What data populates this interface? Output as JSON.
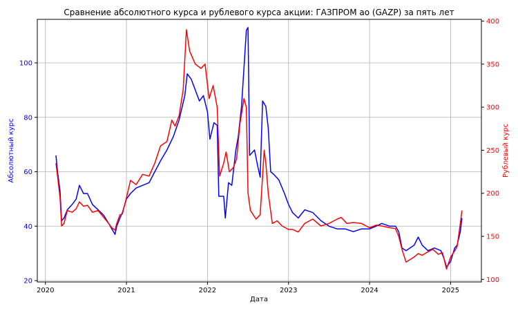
{
  "chart_data": {
    "type": "line",
    "title": "Сравнение абсолютного курса и рублевого курса акции: ГАЗПРОМ ао (GAZP) за пять лет",
    "xlabel": "Дата",
    "ylabel_left": "Абсолютный курс",
    "ylabel_right": "Рублевый курс",
    "xlim": [
      2019.9,
      2025.38
    ],
    "ylim_left": [
      19.5,
      116
    ],
    "ylim_right": [
      97,
      402
    ],
    "x_ticks": [
      {
        "value": 2020,
        "label": "2020"
      },
      {
        "value": 2021,
        "label": "2021"
      },
      {
        "value": 2022,
        "label": "2022"
      },
      {
        "value": 2023,
        "label": "2023"
      },
      {
        "value": 2024,
        "label": "2024"
      },
      {
        "value": 2025,
        "label": "2025"
      }
    ],
    "y_left_ticks": [
      {
        "value": 20,
        "label": "20"
      },
      {
        "value": 40,
        "label": "40"
      },
      {
        "value": 60,
        "label": "60"
      },
      {
        "value": 80,
        "label": "80"
      },
      {
        "value": 100,
        "label": "100"
      }
    ],
    "y_right_ticks": [
      {
        "value": 100,
        "label": "100"
      },
      {
        "value": 150,
        "label": "150"
      },
      {
        "value": 200,
        "label": "200"
      },
      {
        "value": 250,
        "label": "250"
      },
      {
        "value": 300,
        "label": "300"
      },
      {
        "value": 350,
        "label": "350"
      },
      {
        "value": 400,
        "label": "400"
      }
    ],
    "grid": true,
    "colors": {
      "absolute": "#0000ff",
      "ruble": "#ff0000",
      "left_axis": "#0000ff",
      "right_axis": "#ff0000"
    },
    "series": [
      {
        "axis": "left",
        "color": "#0000ff",
        "points": [
          [
            2020.13,
            66
          ],
          [
            2020.15,
            60
          ],
          [
            2020.18,
            53
          ],
          [
            2020.2,
            42
          ],
          [
            2020.23,
            43
          ],
          [
            2020.27,
            46
          ],
          [
            2020.33,
            48
          ],
          [
            2020.38,
            50
          ],
          [
            2020.42,
            55
          ],
          [
            2020.47,
            52
          ],
          [
            2020.52,
            52
          ],
          [
            2020.58,
            48
          ],
          [
            2020.65,
            46
          ],
          [
            2020.72,
            44
          ],
          [
            2020.78,
            41
          ],
          [
            2020.82,
            39
          ],
          [
            2020.86,
            37
          ],
          [
            2020.88,
            40
          ],
          [
            2020.92,
            43
          ],
          [
            2020.95,
            45
          ],
          [
            2021.0,
            50
          ],
          [
            2021.05,
            52
          ],
          [
            2021.12,
            54
          ],
          [
            2021.2,
            55
          ],
          [
            2021.28,
            56
          ],
          [
            2021.35,
            60
          ],
          [
            2021.42,
            64
          ],
          [
            2021.5,
            68
          ],
          [
            2021.58,
            73
          ],
          [
            2021.65,
            79
          ],
          [
            2021.72,
            88
          ],
          [
            2021.75,
            96
          ],
          [
            2021.8,
            94
          ],
          [
            2021.85,
            90
          ],
          [
            2021.9,
            86
          ],
          [
            2021.95,
            88
          ],
          [
            2022.0,
            82
          ],
          [
            2022.03,
            72
          ],
          [
            2022.08,
            78
          ],
          [
            2022.12,
            77
          ],
          [
            2022.14,
            51
          ],
          [
            2022.2,
            51
          ],
          [
            2022.22,
            43
          ],
          [
            2022.26,
            56
          ],
          [
            2022.3,
            55
          ],
          [
            2022.35,
            68
          ],
          [
            2022.38,
            73
          ],
          [
            2022.42,
            84
          ],
          [
            2022.45,
            98
          ],
          [
            2022.48,
            112
          ],
          [
            2022.5,
            113
          ],
          [
            2022.52,
            66
          ],
          [
            2022.58,
            68
          ],
          [
            2022.62,
            62
          ],
          [
            2022.65,
            58
          ],
          [
            2022.68,
            86
          ],
          [
            2022.72,
            84
          ],
          [
            2022.75,
            76
          ],
          [
            2022.78,
            60
          ],
          [
            2022.82,
            59
          ],
          [
            2022.88,
            57
          ],
          [
            2022.95,
            52
          ],
          [
            2023.0,
            48
          ],
          [
            2023.05,
            45
          ],
          [
            2023.12,
            43
          ],
          [
            2023.2,
            46
          ],
          [
            2023.3,
            45
          ],
          [
            2023.4,
            42
          ],
          [
            2023.5,
            40
          ],
          [
            2023.6,
            39
          ],
          [
            2023.7,
            39
          ],
          [
            2023.8,
            38
          ],
          [
            2023.9,
            39
          ],
          [
            2024.0,
            39
          ],
          [
            2024.08,
            40
          ],
          [
            2024.15,
            41
          ],
          [
            2024.25,
            40
          ],
          [
            2024.32,
            40
          ],
          [
            2024.36,
            38
          ],
          [
            2024.4,
            32
          ],
          [
            2024.45,
            31
          ],
          [
            2024.55,
            33
          ],
          [
            2024.6,
            36
          ],
          [
            2024.65,
            33
          ],
          [
            2024.72,
            31
          ],
          [
            2024.8,
            32
          ],
          [
            2024.88,
            31
          ],
          [
            2024.92,
            28
          ],
          [
            2024.95,
            25
          ],
          [
            2025.0,
            27
          ],
          [
            2025.05,
            32
          ],
          [
            2025.08,
            33
          ],
          [
            2025.12,
            38
          ],
          [
            2025.14,
            43
          ]
        ]
      },
      {
        "axis": "right",
        "color": "#ff0000",
        "points": [
          [
            2020.13,
            235
          ],
          [
            2020.15,
            220
          ],
          [
            2020.18,
            195
          ],
          [
            2020.2,
            162
          ],
          [
            2020.23,
            165
          ],
          [
            2020.27,
            180
          ],
          [
            2020.33,
            178
          ],
          [
            2020.38,
            182
          ],
          [
            2020.42,
            190
          ],
          [
            2020.47,
            185
          ],
          [
            2020.52,
            186
          ],
          [
            2020.58,
            178
          ],
          [
            2020.65,
            180
          ],
          [
            2020.72,
            172
          ],
          [
            2020.78,
            165
          ],
          [
            2020.82,
            160
          ],
          [
            2020.86,
            157
          ],
          [
            2020.88,
            165
          ],
          [
            2020.92,
            175
          ],
          [
            2020.95,
            176
          ],
          [
            2021.0,
            195
          ],
          [
            2021.05,
            215
          ],
          [
            2021.12,
            210
          ],
          [
            2021.2,
            222
          ],
          [
            2021.28,
            220
          ],
          [
            2021.35,
            235
          ],
          [
            2021.42,
            255
          ],
          [
            2021.5,
            260
          ],
          [
            2021.56,
            285
          ],
          [
            2021.6,
            278
          ],
          [
            2021.65,
            290
          ],
          [
            2021.7,
            320
          ],
          [
            2021.74,
            390
          ],
          [
            2021.78,
            365
          ],
          [
            2021.85,
            350
          ],
          [
            2021.92,
            345
          ],
          [
            2021.97,
            350
          ],
          [
            2022.02,
            310
          ],
          [
            2022.07,
            325
          ],
          [
            2022.12,
            300
          ],
          [
            2022.15,
            220
          ],
          [
            2022.2,
            235
          ],
          [
            2022.23,
            248
          ],
          [
            2022.27,
            225
          ],
          [
            2022.32,
            230
          ],
          [
            2022.36,
            240
          ],
          [
            2022.4,
            280
          ],
          [
            2022.45,
            310
          ],
          [
            2022.48,
            300
          ],
          [
            2022.5,
            200
          ],
          [
            2022.53,
            180
          ],
          [
            2022.6,
            170
          ],
          [
            2022.65,
            175
          ],
          [
            2022.7,
            250
          ],
          [
            2022.72,
            235
          ],
          [
            2022.75,
            200
          ],
          [
            2022.8,
            165
          ],
          [
            2022.86,
            168
          ],
          [
            2022.92,
            162
          ],
          [
            2023.0,
            158
          ],
          [
            2023.05,
            158
          ],
          [
            2023.12,
            155
          ],
          [
            2023.2,
            165
          ],
          [
            2023.3,
            170
          ],
          [
            2023.4,
            162
          ],
          [
            2023.5,
            165
          ],
          [
            2023.6,
            170
          ],
          [
            2023.65,
            172
          ],
          [
            2023.72,
            165
          ],
          [
            2023.8,
            166
          ],
          [
            2023.9,
            165
          ],
          [
            2024.0,
            160
          ],
          [
            2024.08,
            163
          ],
          [
            2024.15,
            162
          ],
          [
            2024.25,
            160
          ],
          [
            2024.32,
            159
          ],
          [
            2024.36,
            150
          ],
          [
            2024.4,
            135
          ],
          [
            2024.45,
            120
          ],
          [
            2024.55,
            126
          ],
          [
            2024.6,
            130
          ],
          [
            2024.65,
            128
          ],
          [
            2024.72,
            132
          ],
          [
            2024.78,
            135
          ],
          [
            2024.85,
            129
          ],
          [
            2024.9,
            131
          ],
          [
            2024.95,
            112
          ],
          [
            2025.0,
            126
          ],
          [
            2025.05,
            133
          ],
          [
            2025.08,
            138
          ],
          [
            2025.12,
            165
          ],
          [
            2025.14,
            180
          ]
        ]
      }
    ]
  }
}
